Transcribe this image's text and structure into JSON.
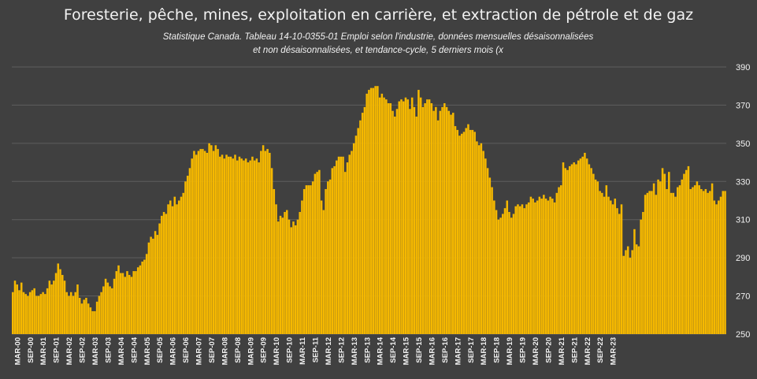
{
  "chart_data": {
    "type": "area",
    "title": "Foresterie, pêche, mines, exploitation en carrière, et extraction de pétrole et de gaz",
    "subtitle_lines": [
      "Statistique Canada. Tableau 14-10-0355-01  Emploi selon l'industrie, données mensuelles désaisonnalisées",
      "et non désaisonnalisées, et tendance-cycle, 5 derniers mois (x"
    ],
    "xlabel": "",
    "ylabel": "",
    "ylim": [
      250,
      390
    ],
    "yticks": [
      "250",
      "270",
      "290",
      "310",
      "330",
      "350",
      "370",
      "390"
    ],
    "ytick_values": [
      250,
      270,
      290,
      310,
      330,
      350,
      370,
      390
    ],
    "y_axis_side": "right",
    "grid": "horizontal",
    "colors": {
      "background": "#404040",
      "fill": "#f5b800",
      "grid": "#5e5e5e",
      "text": "#f2f2f2"
    },
    "x_tick_labels": [
      "MAR-00",
      "SEP-00",
      "MAR-01",
      "SEP-01",
      "MAR-02",
      "SEP-02",
      "MAR-03",
      "SEP-03",
      "MAR-04",
      "SEP-04",
      "MAR-05",
      "SEP-05",
      "MAR-06",
      "SEP-06",
      "MAR-07",
      "SEP-07",
      "MAR-08",
      "SEP-08",
      "MAR-09",
      "SEP-09",
      "MAR-10",
      "SEP-10",
      "MAR-11",
      "SEP-11",
      "MAR-12",
      "SEP-12",
      "MAR-13",
      "SEP-13",
      "MAR-14",
      "SEP-14",
      "MAR-15",
      "SEP-15",
      "MAR-16",
      "SEP-16",
      "MAR-17",
      "SEP-17",
      "MAR-18",
      "SEP-18",
      "MAR-19",
      "SEP-19",
      "MAR-20",
      "SEP-20",
      "MAR-21",
      "SEP-21",
      "MAR-22",
      "SEP-22",
      "MAR-23"
    ],
    "start": "2000-01",
    "monthly_values": [
      272,
      278,
      276,
      273,
      277,
      272,
      271,
      270,
      272,
      273,
      274,
      270,
      270,
      271,
      272,
      271,
      274,
      278,
      276,
      278,
      282,
      287,
      284,
      281,
      278,
      272,
      270,
      272,
      270,
      272,
      276,
      269,
      266,
      268,
      269,
      266,
      264,
      262,
      262,
      267,
      270,
      272,
      275,
      279,
      277,
      275,
      274,
      279,
      283,
      286,
      282,
      282,
      280,
      283,
      281,
      280,
      283,
      283,
      285,
      286,
      288,
      289,
      292,
      298,
      301,
      300,
      304,
      302,
      308,
      312,
      314,
      313,
      318,
      320,
      317,
      322,
      318,
      320,
      322,
      324,
      330,
      333,
      337,
      342,
      346,
      344,
      346,
      347,
      347,
      346,
      345,
      350,
      349,
      346,
      349,
      347,
      343,
      344,
      342,
      344,
      343,
      343,
      342,
      344,
      341,
      343,
      342,
      341,
      342,
      340,
      341,
      343,
      341,
      342,
      340,
      346,
      349,
      346,
      347,
      345,
      337,
      326,
      318,
      309,
      312,
      311,
      314,
      315,
      310,
      306,
      309,
      307,
      310,
      314,
      320,
      326,
      328,
      328,
      328,
      330,
      334,
      335,
      336,
      320,
      315,
      326,
      330,
      331,
      337,
      338,
      341,
      343,
      343,
      343,
      335,
      340,
      344,
      346,
      350,
      354,
      358,
      362,
      366,
      369,
      376,
      378,
      379,
      379,
      380,
      380,
      374,
      376,
      374,
      373,
      371,
      371,
      367,
      364,
      368,
      372,
      373,
      372,
      374,
      373,
      368,
      374,
      369,
      364,
      378,
      374,
      369,
      371,
      373,
      373,
      371,
      367,
      369,
      362,
      367,
      369,
      371,
      369,
      367,
      365,
      366,
      359,
      357,
      354,
      355,
      356,
      358,
      360,
      357,
      357,
      356,
      351,
      349,
      350,
      346,
      342,
      337,
      332,
      327,
      320,
      315,
      310,
      311,
      313,
      316,
      320,
      314,
      311,
      313,
      317,
      318,
      317,
      318,
      316,
      318,
      319,
      322,
      321,
      319,
      320,
      322,
      321,
      323,
      321,
      320,
      322,
      321,
      319,
      324,
      327,
      328,
      340,
      337,
      336,
      338,
      339,
      340,
      339,
      341,
      342,
      343,
      345,
      342,
      339,
      337,
      334,
      331,
      330,
      325,
      324,
      322,
      328,
      322,
      320,
      318,
      321,
      316,
      313,
      318,
      291,
      294,
      296,
      290,
      294,
      305,
      297,
      296,
      310,
      314,
      323,
      324,
      325,
      325,
      329,
      323,
      331,
      330,
      337,
      334,
      326,
      335,
      324,
      324,
      322,
      327,
      328,
      331,
      334,
      336,
      338,
      326,
      327,
      328,
      330,
      328,
      326,
      325,
      326,
      324,
      325,
      329,
      320,
      318,
      320,
      322,
      325,
      325
    ]
  }
}
